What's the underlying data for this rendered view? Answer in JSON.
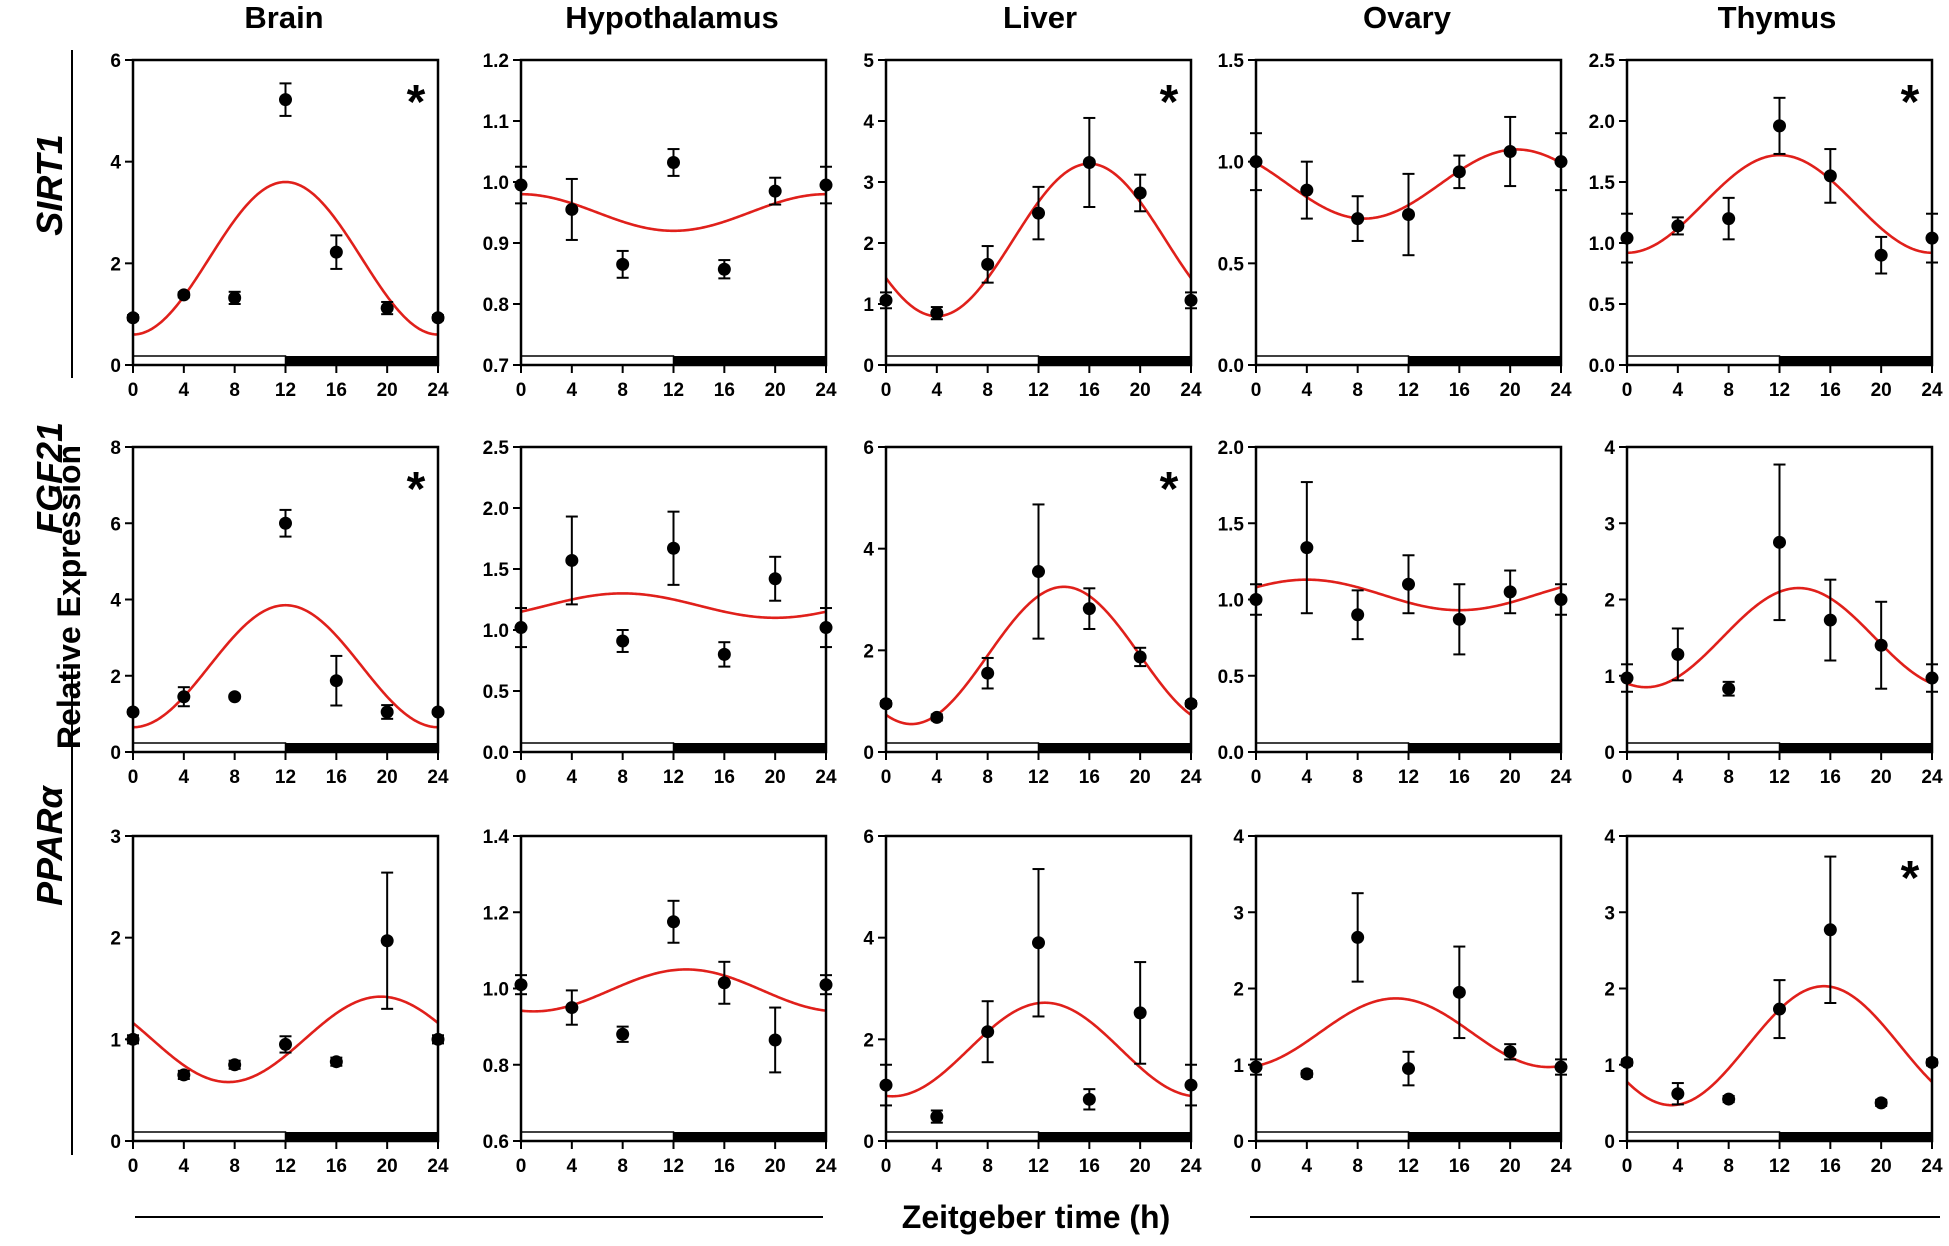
{
  "figure": {
    "x_title": "Zeitgeber time (h)",
    "y_title": "Relative Expression",
    "x_ticks": [
      0,
      4,
      8,
      12,
      16,
      20,
      24
    ],
    "significance_marker": "*"
  },
  "colors": {
    "fit_line": "#e0201b",
    "points": "#000000",
    "axes": "#000000",
    "light_phase": "#ffffff",
    "dark_phase": "#000000"
  },
  "tissues": [
    "Brain",
    "Hypothalamus",
    "Liver",
    "Ovary",
    "Thymus"
  ],
  "genes": [
    "SIRT1",
    "FGF21",
    "PPARα"
  ],
  "chart_data": [
    {
      "type": "scatter",
      "gene": "SIRT1",
      "tissue": "Brain",
      "xlabel": "Zeitgeber time (h)",
      "ylabel": "Relative Expression",
      "ylim": [
        0,
        6
      ],
      "yticks": [
        "0",
        "2",
        "4",
        "6"
      ],
      "x": [
        0,
        4,
        8,
        12,
        16,
        20,
        24
      ],
      "y": [
        0.93,
        1.38,
        1.32,
        5.22,
        2.22,
        1.12,
        0.93
      ],
      "err": [
        0.05,
        0.05,
        0.12,
        0.32,
        0.33,
        0.12,
        0.05
      ],
      "fit": {
        "mesor": 2.1,
        "amplitude": 1.5,
        "peak_time": 12
      },
      "significant": true
    },
    {
      "type": "scatter",
      "gene": "SIRT1",
      "tissue": "Hypothalamus",
      "xlabel": "Zeitgeber time (h)",
      "ylabel": "Relative Expression",
      "ylim": [
        0.7,
        1.2
      ],
      "yticks": [
        "0.7",
        "0.8",
        "0.9",
        "1.0",
        "1.1",
        "1.2"
      ],
      "x": [
        0,
        4,
        8,
        12,
        16,
        20,
        24
      ],
      "y": [
        0.995,
        0.955,
        0.865,
        1.032,
        0.857,
        0.985,
        0.995
      ],
      "err": [
        0.03,
        0.05,
        0.022,
        0.022,
        0.015,
        0.022,
        0.03
      ],
      "fit": {
        "mesor": 0.95,
        "amplitude": 0.03,
        "peak_time": 0
      },
      "significant": false
    },
    {
      "type": "scatter",
      "gene": "SIRT1",
      "tissue": "Liver",
      "xlabel": "Zeitgeber time (h)",
      "ylabel": "Relative Expression",
      "ylim": [
        0,
        5
      ],
      "yticks": [
        "0",
        "1",
        "2",
        "3",
        "4",
        "5"
      ],
      "x": [
        0,
        4,
        8,
        12,
        16,
        20,
        24
      ],
      "y": [
        1.06,
        0.85,
        1.65,
        2.49,
        3.32,
        2.82,
        1.06
      ],
      "err": [
        0.13,
        0.1,
        0.3,
        0.43,
        0.73,
        0.3,
        0.13
      ],
      "fit": {
        "mesor": 2.05,
        "amplitude": 1.25,
        "peak_time": 16
      },
      "significant": true
    },
    {
      "type": "scatter",
      "gene": "SIRT1",
      "tissue": "Ovary",
      "xlabel": "Zeitgeber time (h)",
      "ylabel": "Relative Expression",
      "ylim": [
        0,
        1.5
      ],
      "yticks": [
        "0.0",
        "0.5",
        "1.0",
        "1.5"
      ],
      "x": [
        0,
        4,
        8,
        12,
        16,
        20,
        24
      ],
      "y": [
        1.0,
        0.86,
        0.72,
        0.74,
        0.95,
        1.05,
        1.0
      ],
      "err": [
        0.14,
        0.14,
        0.11,
        0.2,
        0.08,
        0.17,
        0.14
      ],
      "fit": {
        "mesor": 0.89,
        "amplitude": 0.17,
        "peak_time": 20.5
      },
      "significant": false
    },
    {
      "type": "scatter",
      "gene": "SIRT1",
      "tissue": "Thymus",
      "xlabel": "Zeitgeber time (h)",
      "ylabel": "Relative Expression",
      "ylim": [
        0,
        2.5
      ],
      "yticks": [
        "0.0",
        "0.5",
        "1.0",
        "1.5",
        "2.0",
        "2.5"
      ],
      "x": [
        0,
        4,
        8,
        12,
        16,
        20,
        24
      ],
      "y": [
        1.04,
        1.14,
        1.2,
        1.96,
        1.55,
        0.9,
        1.04
      ],
      "err": [
        0.2,
        0.07,
        0.17,
        0.23,
        0.22,
        0.15,
        0.2
      ],
      "fit": {
        "mesor": 1.32,
        "amplitude": 0.4,
        "peak_time": 12
      },
      "significant": true
    },
    {
      "type": "scatter",
      "gene": "FGF21",
      "tissue": "Brain",
      "xlabel": "Zeitgeber time (h)",
      "ylabel": "Relative Expression",
      "ylim": [
        0,
        8
      ],
      "yticks": [
        "0",
        "2",
        "4",
        "6",
        "8"
      ],
      "x": [
        0,
        4,
        8,
        12,
        16,
        20,
        24
      ],
      "y": [
        1.05,
        1.45,
        1.45,
        6.0,
        1.87,
        1.05,
        1.05
      ],
      "err": [
        0.05,
        0.25,
        0.05,
        0.35,
        0.65,
        0.18,
        0.05
      ],
      "fit": {
        "mesor": 2.25,
        "amplitude": 1.6,
        "peak_time": 12
      },
      "significant": true
    },
    {
      "type": "scatter",
      "gene": "FGF21",
      "tissue": "Hypothalamus",
      "xlabel": "Zeitgeber time (h)",
      "ylabel": "Relative Expression",
      "ylim": [
        0,
        2.5
      ],
      "yticks": [
        "0.0",
        "0.5",
        "1.0",
        "1.5",
        "2.0",
        "2.5"
      ],
      "x": [
        0,
        4,
        8,
        12,
        16,
        20,
        24
      ],
      "y": [
        1.02,
        1.57,
        0.91,
        1.67,
        0.8,
        1.42,
        1.02
      ],
      "err": [
        0.16,
        0.36,
        0.09,
        0.3,
        0.1,
        0.18,
        0.16
      ],
      "fit": {
        "mesor": 1.2,
        "amplitude": 0.1,
        "peak_time": 8
      },
      "significant": false
    },
    {
      "type": "scatter",
      "gene": "FGF21",
      "tissue": "Liver",
      "xlabel": "Zeitgeber time (h)",
      "ylabel": "Relative Expression",
      "ylim": [
        0,
        6
      ],
      "yticks": [
        "0",
        "2",
        "4",
        "6"
      ],
      "x": [
        0,
        4,
        8,
        12,
        16,
        20,
        24
      ],
      "y": [
        0.95,
        0.68,
        1.55,
        3.55,
        2.82,
        1.87,
        0.95
      ],
      "err": [
        0.05,
        0.06,
        0.3,
        1.32,
        0.4,
        0.18,
        0.05
      ],
      "fit": {
        "mesor": 1.9,
        "amplitude": 1.35,
        "peak_time": 14
      },
      "significant": true
    },
    {
      "type": "scatter",
      "gene": "FGF21",
      "tissue": "Ovary",
      "xlabel": "Zeitgeber time (h)",
      "ylabel": "Relative Expression",
      "ylim": [
        0,
        2
      ],
      "yticks": [
        "0.0",
        "0.5",
        "1.0",
        "1.5",
        "2.0"
      ],
      "x": [
        0,
        4,
        8,
        12,
        16,
        20,
        24
      ],
      "y": [
        1.0,
        1.34,
        0.9,
        1.1,
        0.87,
        1.05,
        1.0
      ],
      "err": [
        0.1,
        0.43,
        0.16,
        0.19,
        0.23,
        0.14,
        0.1
      ],
      "fit": {
        "mesor": 1.03,
        "amplitude": 0.1,
        "peak_time": 4
      },
      "significant": false
    },
    {
      "type": "scatter",
      "gene": "FGF21",
      "tissue": "Thymus",
      "xlabel": "Zeitgeber time (h)",
      "ylabel": "Relative Expression",
      "ylim": [
        0,
        4
      ],
      "yticks": [
        "0",
        "1",
        "2",
        "3",
        "4"
      ],
      "x": [
        0,
        4,
        8,
        12,
        16,
        20,
        24
      ],
      "y": [
        0.97,
        1.28,
        0.83,
        2.75,
        1.73,
        1.4,
        0.97
      ],
      "err": [
        0.18,
        0.34,
        0.09,
        1.02,
        0.53,
        0.57,
        0.18
      ],
      "fit": {
        "mesor": 1.5,
        "amplitude": 0.65,
        "peak_time": 13.5
      },
      "significant": false
    },
    {
      "type": "scatter",
      "gene": "PPARα",
      "tissue": "Brain",
      "xlabel": "Zeitgeber time (h)",
      "ylabel": "Relative Expression",
      "ylim": [
        0,
        3
      ],
      "yticks": [
        "0",
        "1",
        "2",
        "3"
      ],
      "x": [
        0,
        4,
        8,
        12,
        16,
        20,
        24
      ],
      "y": [
        1.0,
        0.65,
        0.75,
        0.95,
        0.78,
        1.97,
        1.0
      ],
      "err": [
        0.04,
        0.04,
        0.04,
        0.08,
        0.04,
        0.67,
        0.04
      ],
      "fit": {
        "mesor": 1.0,
        "amplitude": 0.42,
        "peak_time": 19.5
      },
      "significant": false
    },
    {
      "type": "scatter",
      "gene": "PPARα",
      "tissue": "Hypothalamus",
      "xlabel": "Zeitgeber time (h)",
      "ylabel": "Relative Expression",
      "ylim": [
        0.6,
        1.4
      ],
      "yticks": [
        "0.6",
        "0.8",
        "1.0",
        "1.2",
        "1.4"
      ],
      "x": [
        0,
        4,
        8,
        12,
        16,
        20,
        24
      ],
      "y": [
        1.01,
        0.95,
        0.88,
        1.175,
        1.015,
        0.865,
        1.01
      ],
      "err": [
        0.025,
        0.045,
        0.02,
        0.055,
        0.055,
        0.085,
        0.025
      ],
      "fit": {
        "mesor": 0.995,
        "amplitude": 0.055,
        "peak_time": 13
      },
      "significant": false
    },
    {
      "type": "scatter",
      "gene": "PPARα",
      "tissue": "Liver",
      "xlabel": "Zeitgeber time (h)",
      "ylabel": "Relative Expression",
      "ylim": [
        0,
        6
      ],
      "yticks": [
        "0",
        "2",
        "4",
        "6"
      ],
      "x": [
        0,
        4,
        8,
        12,
        16,
        20,
        24
      ],
      "y": [
        1.1,
        0.48,
        2.15,
        3.9,
        0.82,
        2.52,
        1.1
      ],
      "err": [
        0.4,
        0.12,
        0.6,
        1.45,
        0.2,
        1.0,
        0.4
      ],
      "fit": {
        "mesor": 1.8,
        "amplitude": 0.92,
        "peak_time": 12.5
      },
      "significant": false
    },
    {
      "type": "scatter",
      "gene": "PPARα",
      "tissue": "Ovary",
      "xlabel": "Zeitgeber time (h)",
      "ylabel": "Relative Expression",
      "ylim": [
        0,
        4
      ],
      "yticks": [
        "0",
        "1",
        "2",
        "3",
        "4"
      ],
      "x": [
        0,
        4,
        8,
        12,
        16,
        20,
        24
      ],
      "y": [
        0.97,
        0.88,
        2.67,
        0.95,
        1.95,
        1.17,
        0.97
      ],
      "err": [
        0.1,
        0.04,
        0.58,
        0.22,
        0.6,
        0.1,
        0.1
      ],
      "fit": {
        "mesor": 1.42,
        "amplitude": 0.45,
        "peak_time": 11
      },
      "significant": false
    },
    {
      "type": "scatter",
      "gene": "PPARα",
      "tissue": "Thymus",
      "xlabel": "Zeitgeber time (h)",
      "ylabel": "Relative Expression",
      "ylim": [
        0,
        4
      ],
      "yticks": [
        "0",
        "1",
        "2",
        "3",
        "4"
      ],
      "x": [
        0,
        4,
        8,
        12,
        16,
        20,
        24
      ],
      "y": [
        1.03,
        0.62,
        0.55,
        1.73,
        2.77,
        0.5,
        1.03
      ],
      "err": [
        0.04,
        0.14,
        0.04,
        0.38,
        0.96,
        0.04,
        0.04
      ],
      "fit": {
        "mesor": 1.25,
        "amplitude": 0.78,
        "peak_time": 15.5
      },
      "significant": true
    }
  ]
}
